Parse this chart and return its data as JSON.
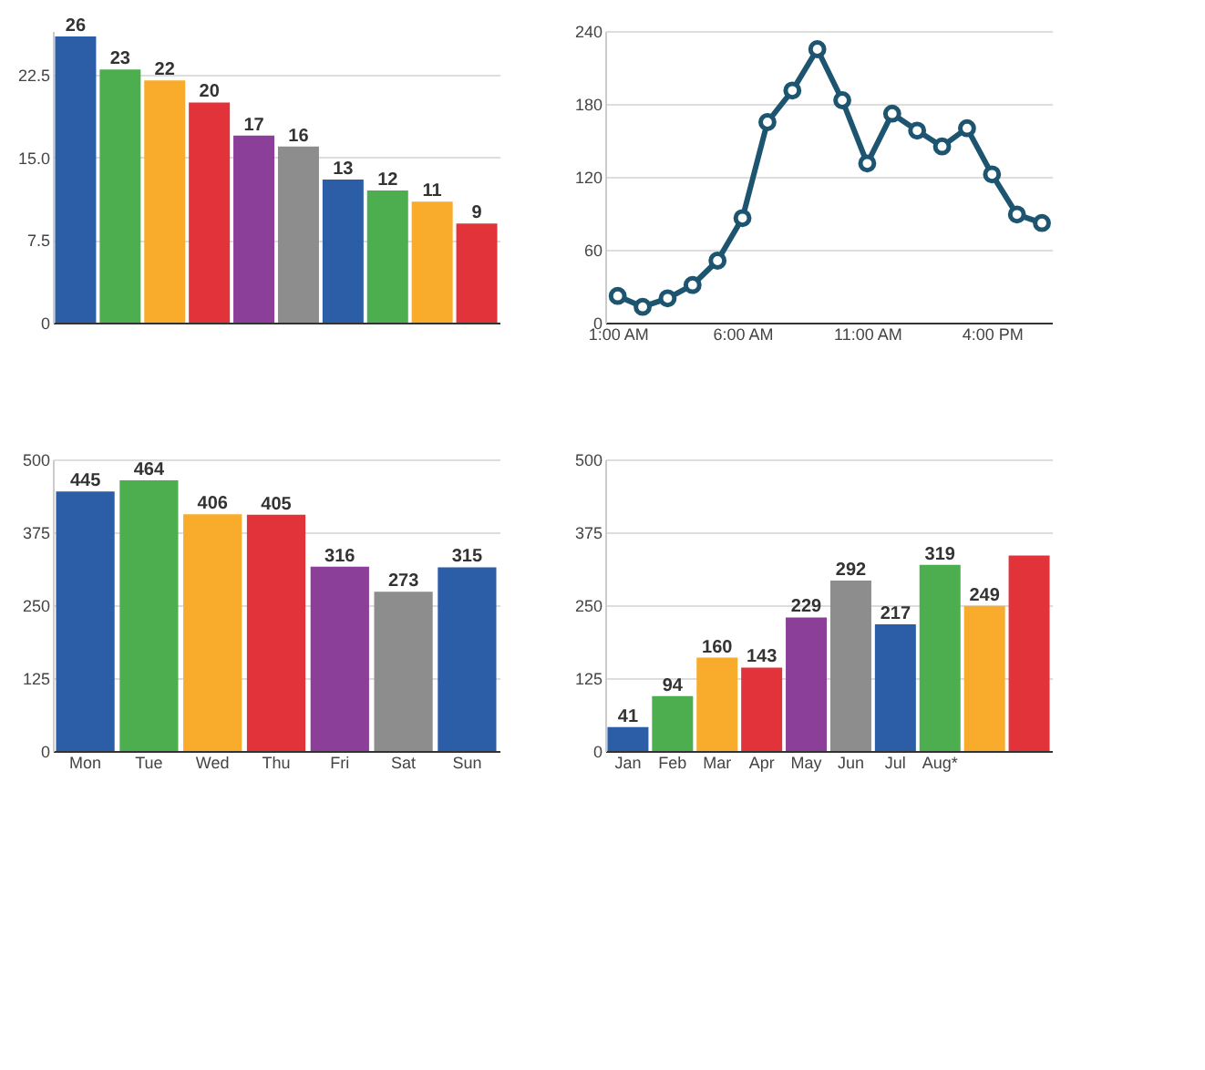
{
  "chart_data": [
    {
      "type": "bar",
      "categories": [
        null,
        null,
        null,
        null,
        null,
        null,
        null,
        null,
        null,
        null
      ],
      "values": [
        26,
        23,
        22,
        20,
        17,
        16,
        13,
        12,
        11,
        9
      ],
      "colors": [
        "#2b5ea7",
        "#4cae4f",
        "#f9ac2c",
        "#e2333b",
        "#8b3f98",
        "#8d8d8d",
        "#2b5ea7",
        "#4cae4f",
        "#f9ac2c",
        "#e2333b"
      ],
      "ylim": [
        0,
        26.5
      ],
      "yticks": [
        0,
        {
          "value": 7.5,
          "label": "7.5"
        },
        {
          "value": 15,
          "label": "15.0"
        },
        {
          "value": 22.5,
          "label": "22.5"
        }
      ],
      "grid": "y",
      "data_labels": true
    },
    {
      "type": "line",
      "x": [
        1,
        2,
        3,
        4,
        5,
        6,
        7,
        8,
        9,
        10,
        11,
        12,
        13,
        14,
        15,
        16,
        17,
        18
      ],
      "series": [
        {
          "color": "#1d5570",
          "values": [
            22,
            13,
            20,
            31,
            51,
            86,
            165,
            191,
            225,
            183,
            131,
            172,
            158,
            145,
            160,
            122,
            89,
            82
          ]
        }
      ],
      "xlim": [
        0.5,
        18.4
      ],
      "xticks": [
        {
          "value": 1,
          "label": "1:00 AM"
        },
        {
          "value": 6,
          "label": "6:00 AM"
        },
        {
          "value": 11,
          "label": "11:00 AM"
        },
        {
          "value": 16,
          "label": "4:00 PM"
        }
      ],
      "ylim": [
        0,
        240
      ],
      "yticks": [
        0,
        60,
        120,
        180,
        240
      ],
      "grid": "y",
      "marker": "circle"
    },
    {
      "type": "bar",
      "categories": [
        "Mon",
        "Tue",
        "Wed",
        "Thu",
        "Fri",
        "Sat",
        "Sun"
      ],
      "values": [
        445,
        464,
        406,
        405,
        316,
        273,
        315
      ],
      "colors": [
        "#2b5ea7",
        "#4cae4f",
        "#f9ac2c",
        "#e2333b",
        "#8b3f98",
        "#8d8d8d",
        "#2b5ea7"
      ],
      "ylim": [
        0,
        500
      ],
      "yticks": [
        0,
        125,
        250,
        375,
        500
      ],
      "grid": "y",
      "data_labels": true
    },
    {
      "type": "bar",
      "categories": [
        "Jan",
        "Feb",
        "Mar",
        "Apr",
        "May",
        "Jun",
        "Jul",
        "Aug*",
        null,
        null
      ],
      "values": [
        41,
        94,
        160,
        143,
        229,
        292,
        217,
        319,
        249,
        335
      ],
      "colors": [
        "#2b5ea7",
        "#4cae4f",
        "#f9ac2c",
        "#e2333b",
        "#8b3f98",
        "#8d8d8d",
        "#2b5ea7",
        "#4cae4f",
        "#f9ac2c",
        "#e2333b"
      ],
      "value_labels": [
        "41",
        "94",
        "160",
        "143",
        "229",
        "292",
        "217",
        "319",
        "249",
        null
      ],
      "ylim": [
        0,
        500
      ],
      "yticks": [
        0,
        125,
        250,
        375,
        500
      ],
      "grid": "y"
    }
  ]
}
